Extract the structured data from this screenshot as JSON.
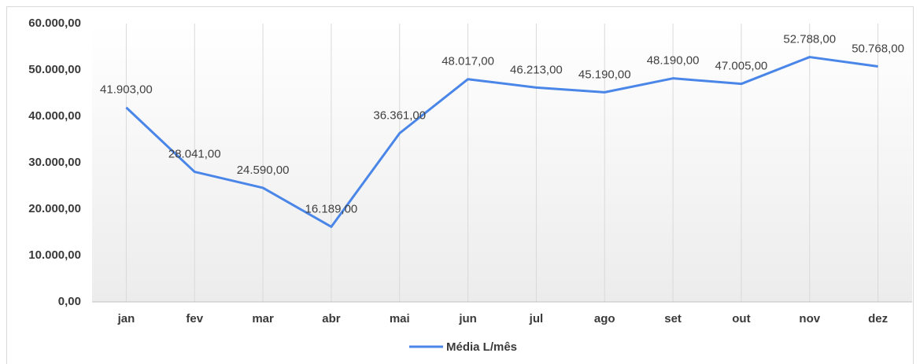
{
  "chart_data": {
    "type": "line",
    "categories": [
      "jan",
      "fev",
      "mar",
      "abr",
      "mai",
      "jun",
      "jul",
      "ago",
      "set",
      "out",
      "nov",
      "dez"
    ],
    "series": [
      {
        "name": "Média L/mês",
        "color": "#4a86e8",
        "values": [
          41903,
          28041,
          24590,
          16189,
          36361,
          48017,
          46213,
          45190,
          48190,
          47005,
          52788,
          50768
        ],
        "value_labels": [
          "41.903,00",
          "28.041,00",
          "24.590,00",
          "16.189,00",
          "36.361,00",
          "48.017,00",
          "46.213,00",
          "45.190,00",
          "48.190,00",
          "47.005,00",
          "52.788,00",
          "50.768,00"
        ]
      }
    ],
    "ylim": [
      0,
      60000
    ],
    "yticks": [
      {
        "value": 0,
        "label": "0,00"
      },
      {
        "value": 10000,
        "label": "10.000,00"
      },
      {
        "value": 20000,
        "label": "20.000,00"
      },
      {
        "value": 30000,
        "label": "30.000,00"
      },
      {
        "value": 40000,
        "label": "40.000,00"
      },
      {
        "value": 50000,
        "label": "50.000,00"
      },
      {
        "value": 60000,
        "label": "60.000,00"
      }
    ],
    "grid": true,
    "legend": "bottom"
  }
}
